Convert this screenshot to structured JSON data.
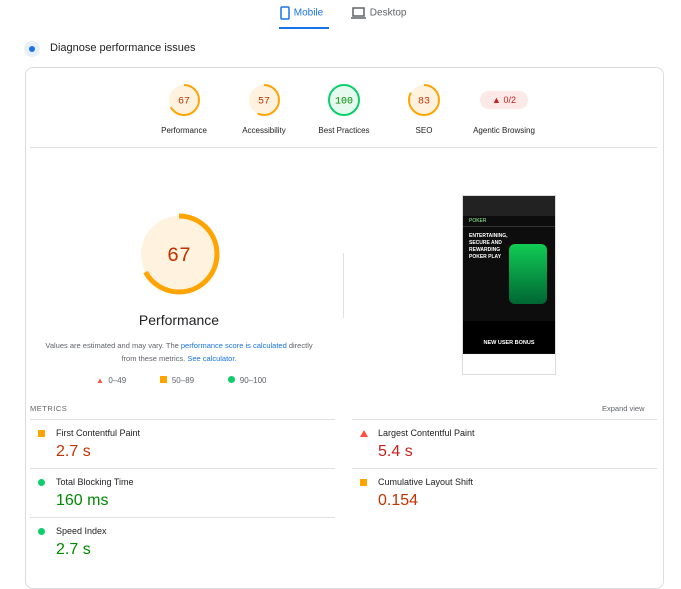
{
  "tabs": [
    "Mobile",
    "Desktop"
  ],
  "section_title": "Diagnose performance issues",
  "scores": [
    {
      "label": "Performance",
      "value": 67,
      "color": "#ffa400"
    },
    {
      "label": "Accessibility",
      "value": 57,
      "color": "#ffa400"
    },
    {
      "label": "Best Practices",
      "value": 100,
      "color": "#0cce6b"
    },
    {
      "label": "SEO",
      "value": 83,
      "color": "#ffa400"
    }
  ],
  "agentic": {
    "label": "Agentic Browsing",
    "value": "0/2"
  },
  "main": {
    "value": 67,
    "label": "Performance",
    "color": "#ffa400",
    "note": [
      "Values are estimated and may vary. The ",
      "performance score is calculated",
      " directly from these metrics. ",
      "See calculator."
    ]
  },
  "legend": [
    "0–49",
    "50–89",
    "90–100"
  ],
  "thumbnail": {
    "brand": "POKER",
    "headline": "ENTERTAINING, SECURE AND REWARDING POKER PLAY",
    "banner": "NEW USER BONUS"
  },
  "metrics_header": "METRICS",
  "expand": "Expand view",
  "metrics": [
    {
      "label": "First Contentful Paint",
      "value": "2.7 s",
      "color": "#ffa400"
    },
    {
      "label": "Largest Contentful Paint",
      "value": "5.4 s",
      "color": "#ff4e42"
    },
    {
      "label": "Total Blocking Time",
      "value": "160 ms",
      "color": "#0cce6b"
    },
    {
      "label": "Cumulative Layout Shift",
      "value": "0.154",
      "color": "#ffa400"
    },
    {
      "label": "Speed Index",
      "value": "2.7 s",
      "color": "#0cce6b"
    }
  ]
}
